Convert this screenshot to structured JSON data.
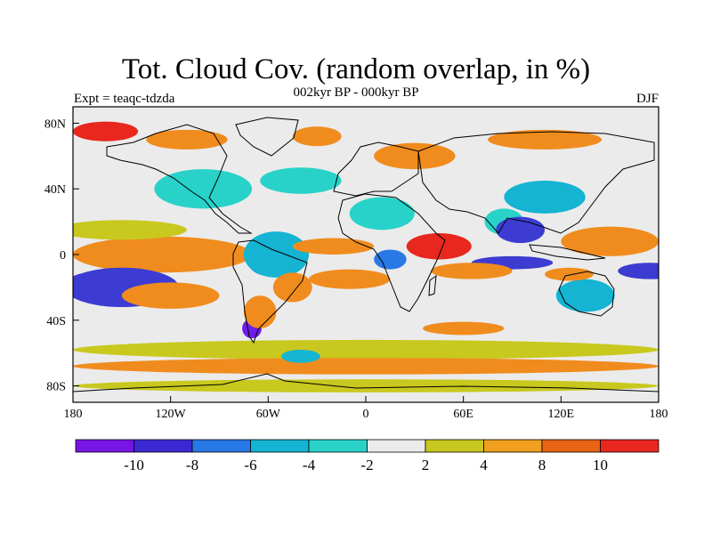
{
  "title": "Tot. Cloud Cov. (random overlap, in %)",
  "subtitle": {
    "left": "Expt = teaqc-tdzda",
    "center": "002kyr BP - 000kyr BP",
    "right": "DJF"
  },
  "map": {
    "projection": "cylindrical equidistant",
    "lon_range": [
      -180,
      180
    ],
    "lat_range": [
      -90,
      90
    ],
    "x_ticks": [
      {
        "lon": -180,
        "label": "180"
      },
      {
        "lon": -120,
        "label": "120W"
      },
      {
        "lon": -60,
        "label": "60W"
      },
      {
        "lon": 0,
        "label": "0"
      },
      {
        "lon": 60,
        "label": "60E"
      },
      {
        "lon": 120,
        "label": "120E"
      },
      {
        "lon": 180,
        "label": "180"
      }
    ],
    "y_ticks": [
      {
        "lat": 80,
        "label": "80N"
      },
      {
        "lat": 40,
        "label": "40N"
      },
      {
        "lat": 0,
        "label": "0"
      },
      {
        "lat": -40,
        "label": "40S"
      },
      {
        "lat": -80,
        "label": "80S"
      }
    ],
    "background_color": "#ebebeb",
    "anomaly_regions": [
      {
        "name": "eq-pacific-positive",
        "lon": -135,
        "lat": -2,
        "rlon": 42,
        "rlat": 7,
        "color": "#e8281e"
      },
      {
        "name": "eq-pacific-orange",
        "lon": -125,
        "lat": 0,
        "rlon": 55,
        "rlat": 11,
        "color": "#f08c1e"
      },
      {
        "name": "npac-yellow",
        "lon": -150,
        "lat": 15,
        "rlon": 40,
        "rlat": 6,
        "color": "#c8c81e"
      },
      {
        "name": "south-pacific-negative",
        "lon": -160,
        "lat": -18,
        "rlon": 25,
        "rlat": 8,
        "color": "#6e1ee6"
      },
      {
        "name": "south-pacific-blue",
        "lon": -150,
        "lat": -20,
        "rlon": 35,
        "rlat": 12,
        "color": "#3c3cd2"
      },
      {
        "name": "se-pacific-orange",
        "lon": -120,
        "lat": -25,
        "rlon": 30,
        "rlat": 8,
        "color": "#f08c1e"
      },
      {
        "name": "amazon-negative",
        "lon": -60,
        "lat": -5,
        "rlon": 12,
        "rlat": 8,
        "color": "#2878e6"
      },
      {
        "name": "amazon-cyan",
        "lon": -55,
        "lat": 0,
        "rlon": 20,
        "rlat": 14,
        "color": "#14b4d2"
      },
      {
        "name": "brazil-orange",
        "lon": -45,
        "lat": -20,
        "rlon": 12,
        "rlat": 9,
        "color": "#f08c1e"
      },
      {
        "name": "patagonia-negative",
        "lon": -70,
        "lat": -45,
        "rlon": 6,
        "rlat": 6,
        "color": "#6e1ee6"
      },
      {
        "name": "s-america-orange",
        "lon": -65,
        "lat": -35,
        "rlon": 10,
        "rlat": 10,
        "color": "#f08c1e"
      },
      {
        "name": "north-america-cyan",
        "lon": -100,
        "lat": 40,
        "rlon": 30,
        "rlat": 12,
        "color": "#28d2c8"
      },
      {
        "name": "n-atlantic-teal",
        "lon": -40,
        "lat": 45,
        "rlon": 25,
        "rlat": 8,
        "color": "#28d2c8"
      },
      {
        "name": "canada-orange",
        "lon": -110,
        "lat": 70,
        "rlon": 25,
        "rlat": 6,
        "color": "#f08c1e"
      },
      {
        "name": "arctic-orange",
        "lon": -160,
        "lat": 75,
        "rlon": 20,
        "rlat": 6,
        "color": "#e8281e"
      },
      {
        "name": "greenland-orange",
        "lon": -30,
        "lat": 72,
        "rlon": 15,
        "rlat": 6,
        "color": "#f08c1e"
      },
      {
        "name": "europe-orange",
        "lon": 30,
        "lat": 60,
        "rlon": 25,
        "rlat": 8,
        "color": "#f08c1e"
      },
      {
        "name": "siberia-orange",
        "lon": 110,
        "lat": 70,
        "rlon": 35,
        "rlat": 6,
        "color": "#f08c1e"
      },
      {
        "name": "sahara-cyan",
        "lon": 10,
        "lat": 25,
        "rlon": 20,
        "rlat": 10,
        "color": "#28d2c8"
      },
      {
        "name": "tropical-atlantic-orange",
        "lon": -20,
        "lat": 5,
        "rlon": 25,
        "rlat": 5,
        "color": "#f08c1e"
      },
      {
        "name": "east-africa-orange",
        "lon": 45,
        "lat": 5,
        "rlon": 20,
        "rlat": 8,
        "color": "#e8281e"
      },
      {
        "name": "congo-negative",
        "lon": 15,
        "lat": -3,
        "rlon": 10,
        "rlat": 6,
        "color": "#2878e6"
      },
      {
        "name": "s-atlantic-orange",
        "lon": -10,
        "lat": -15,
        "rlon": 25,
        "rlat": 6,
        "color": "#f08c1e"
      },
      {
        "name": "india-cyan",
        "lon": 85,
        "lat": 20,
        "rlon": 12,
        "rlat": 8,
        "color": "#28d2c8"
      },
      {
        "name": "se-asia-negative",
        "lon": 95,
        "lat": 15,
        "rlon": 15,
        "rlat": 8,
        "color": "#3c3cd2"
      },
      {
        "name": "china-cyan",
        "lon": 110,
        "lat": 35,
        "rlon": 25,
        "rlat": 10,
        "color": "#14b4d2"
      },
      {
        "name": "w-pacific-positive",
        "lon": 140,
        "lat": 5,
        "rlon": 15,
        "rlat": 5,
        "color": "#e8281e"
      },
      {
        "name": "w-pacific-orange",
        "lon": 150,
        "lat": 8,
        "rlon": 30,
        "rlat": 9,
        "color": "#f08c1e"
      },
      {
        "name": "indian-ocean-negative",
        "lon": 90,
        "lat": -5,
        "rlon": 25,
        "rlat": 4,
        "color": "#3c3cd2"
      },
      {
        "name": "indian-ocean-orange",
        "lon": 65,
        "lat": -10,
        "rlon": 25,
        "rlat": 5,
        "color": "#f08c1e"
      },
      {
        "name": "spcz-negative",
        "lon": 175,
        "lat": -10,
        "rlon": 20,
        "rlat": 5,
        "color": "#3c3cd2"
      },
      {
        "name": "australia-cyan",
        "lon": 135,
        "lat": -25,
        "rlon": 18,
        "rlat": 10,
        "color": "#14b4d2"
      },
      {
        "name": "n-australia-orange",
        "lon": 125,
        "lat": -12,
        "rlon": 15,
        "rlat": 4,
        "color": "#f08c1e"
      },
      {
        "name": "southern-ocean-yellow-band",
        "lon": 0,
        "lat": -58,
        "rlon": 180,
        "rlat": 6,
        "color": "#c8c81e"
      },
      {
        "name": "antarctic-orange-band",
        "lon": 0,
        "lat": -68,
        "rlon": 180,
        "rlat": 5,
        "color": "#f08c1e"
      },
      {
        "name": "antarctica-yellow",
        "lon": 0,
        "lat": -80,
        "rlon": 180,
        "rlat": 4,
        "color": "#c8c81e"
      },
      {
        "name": "weddell-cyan",
        "lon": -40,
        "lat": -62,
        "rlon": 12,
        "rlat": 4,
        "color": "#14b4d2"
      },
      {
        "name": "s-indian-orange",
        "lon": 60,
        "lat": -45,
        "rlon": 25,
        "rlat": 4,
        "color": "#f08c1e"
      }
    ]
  },
  "colorbar": {
    "colors": [
      "#7814e6",
      "#3c28d2",
      "#2878e6",
      "#14b4d2",
      "#28d2c8",
      "#ebebeb",
      "#c8c81e",
      "#f0a01e",
      "#e66414",
      "#e8281e"
    ],
    "labels": [
      "-10",
      "-8",
      "-6",
      "-4",
      "-2",
      "2",
      "4",
      "8",
      "10"
    ]
  }
}
